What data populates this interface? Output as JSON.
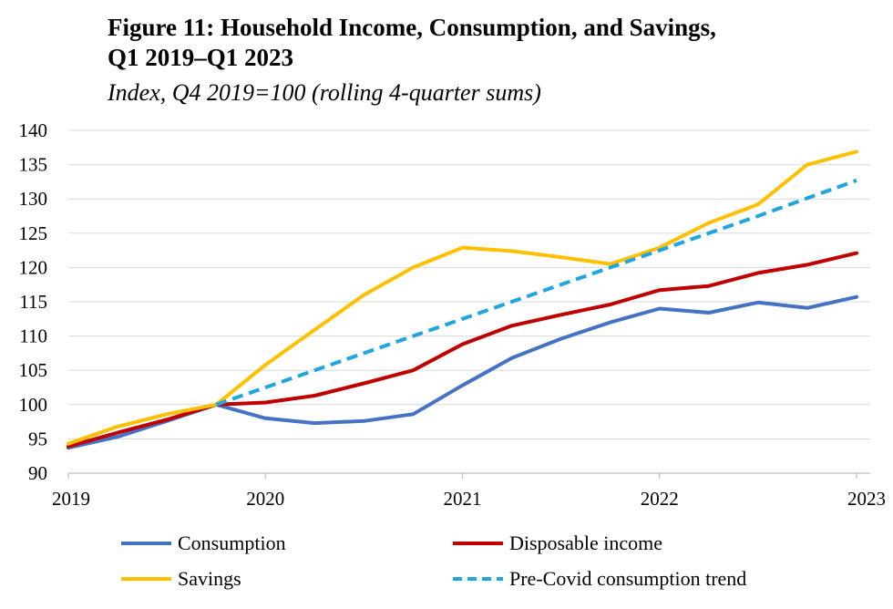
{
  "title_line1": "Figure 11: Household Income, Consumption, and Savings,",
  "title_line2": "Q1 2019–Q1 2023",
  "subtitle": "Index, Q4 2019=100 (rolling 4-quarter sums)",
  "chart_data": {
    "type": "line",
    "title": "Figure 11: Household Income, Consumption, and Savings, Q1 2019–Q1 2023",
    "subtitle": "Index, Q4 2019=100 (rolling 4-quarter sums)",
    "xlabel": "",
    "ylabel": "",
    "x": [
      2019.0,
      2019.25,
      2019.5,
      2019.75,
      2020.0,
      2020.25,
      2020.5,
      2020.75,
      2021.0,
      2021.25,
      2021.5,
      2021.75,
      2022.0,
      2022.25,
      2022.5,
      2022.75,
      2023.0
    ],
    "xlim": [
      2019,
      2023
    ],
    "ylim": [
      90,
      140
    ],
    "xticks": [
      2019,
      2020,
      2021,
      2022,
      2023
    ],
    "xtick_labels": [
      "2019",
      "2020",
      "2021",
      "2022",
      "2023"
    ],
    "yticks": [
      90,
      95,
      100,
      105,
      110,
      115,
      120,
      125,
      130,
      135,
      140
    ],
    "ytick_labels": [
      "90",
      "95",
      "100",
      "105",
      "110",
      "115",
      "120",
      "125",
      "130",
      "135",
      "140"
    ],
    "grid": true,
    "legend_position": "bottom",
    "series": [
      {
        "name": "Consumption",
        "color": "#4472C4",
        "style": "solid",
        "values": [
          93.7,
          95.3,
          97.6,
          100.0,
          98.0,
          97.3,
          97.6,
          98.6,
          102.8,
          106.8,
          109.6,
          112.0,
          114.0,
          113.4,
          114.9,
          114.1,
          115.7
        ]
      },
      {
        "name": "Disposable income",
        "color": "#C00000",
        "style": "solid",
        "values": [
          93.9,
          95.9,
          97.8,
          100.0,
          100.3,
          101.3,
          103.1,
          105.0,
          108.8,
          111.5,
          113.1,
          114.6,
          116.7,
          117.3,
          119.2,
          120.4,
          122.1
        ]
      },
      {
        "name": "Savings",
        "color": "#FFC000",
        "style": "solid",
        "values": [
          94.3,
          96.8,
          98.6,
          100.0,
          105.8,
          110.9,
          116.0,
          120.0,
          122.9,
          122.4,
          121.5,
          120.5,
          122.9,
          126.5,
          129.2,
          135.0,
          136.9
        ]
      },
      {
        "name": "Pre-Covid consumption trend",
        "color": "#1FA5E0",
        "style": "dashed",
        "values": [
          null,
          null,
          null,
          100.0,
          102.5,
          105.0,
          107.5,
          110.0,
          112.5,
          115.0,
          117.5,
          120.0,
          122.5,
          125.0,
          127.5,
          130.1,
          132.7
        ]
      }
    ]
  }
}
